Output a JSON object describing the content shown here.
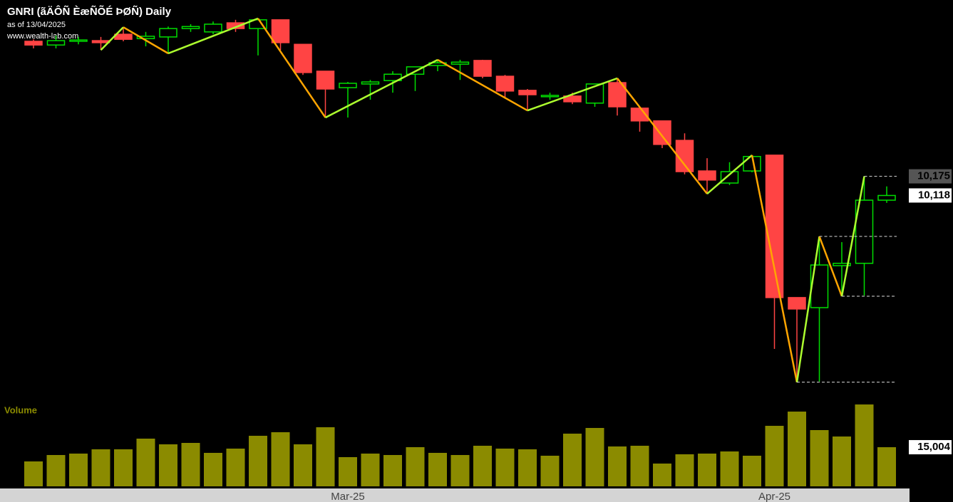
{
  "title": "GNRI (ãÄÔÑ ÈæÑÕÉ ÞØÑ) Daily",
  "subtitle": "as of 13/04/2025",
  "source": "www.wealth-lab.com",
  "chart_data": [
    {
      "type": "candlestick",
      "up_color": "#00dd00",
      "down_color": "#ff4444",
      "ylim": [
        9500,
        10700
      ],
      "yticks": [
        {
          "value": 10175,
          "label": "10,175"
        },
        {
          "value": 10118,
          "label": "10,118"
        }
      ],
      "open": [
        10577,
        10566,
        10577,
        10579,
        10598,
        10585,
        10590,
        10615,
        10605,
        10632,
        10615,
        10641,
        10568,
        10488,
        10439,
        10450,
        10460,
        10479,
        10505,
        10509,
        10520,
        10473,
        10431,
        10412,
        10414,
        10393,
        10454,
        10378,
        10340,
        10282,
        10191,
        10155,
        10191,
        10238,
        9814,
        9784,
        9909,
        9916,
        10104
      ],
      "high": [
        10583,
        10594,
        10590,
        10590,
        10619,
        10605,
        10621,
        10628,
        10636,
        10641,
        10645,
        10641,
        10568,
        10488,
        10456,
        10462,
        10488,
        10501,
        10522,
        10522,
        10522,
        10477,
        10435,
        10424,
        10424,
        10450,
        10467,
        10378,
        10340,
        10303,
        10229,
        10217,
        10238,
        10238,
        9814,
        9996,
        9979,
        10175,
        10145
      ],
      "low": [
        10556,
        10556,
        10568,
        10551,
        10577,
        10562,
        10541,
        10605,
        10598,
        10605,
        10535,
        10551,
        10477,
        10350,
        10350,
        10403,
        10424,
        10429,
        10488,
        10462,
        10467,
        10407,
        10371,
        10403,
        10390,
        10382,
        10356,
        10308,
        10259,
        10181,
        10123,
        10149,
        10187,
        9661,
        9562,
        9564,
        9818,
        9820,
        10096
      ],
      "close": [
        10566,
        10579,
        10581,
        10573,
        10583,
        10592,
        10615,
        10621,
        10628,
        10615,
        10641,
        10573,
        10484,
        10435,
        10452,
        10456,
        10479,
        10501,
        10513,
        10515,
        10473,
        10429,
        10418,
        10416,
        10397,
        10450,
        10382,
        10340,
        10270,
        10189,
        10164,
        10189,
        10234,
        9814,
        9780,
        9911,
        9916,
        10104,
        10118
      ]
    },
    {
      "type": "bar",
      "title": "Volume",
      "color": "#8b8b00",
      "ylim": [
        0,
        31400
      ],
      "yticks": [
        {
          "value": 15004,
          "label": "15,004"
        }
      ],
      "categories": [
        null,
        null,
        null,
        null,
        null,
        null,
        null,
        null,
        null,
        null,
        null,
        null,
        null,
        null,
        "Mar-25",
        null,
        null,
        null,
        null,
        null,
        null,
        null,
        null,
        null,
        null,
        null,
        null,
        null,
        null,
        null,
        null,
        null,
        null,
        "Apr-25",
        null,
        null,
        null,
        null,
        null
      ],
      "values": [
        9555,
        12012,
        12558,
        14196,
        14196,
        18291,
        16107,
        16653,
        12831,
        14469,
        19383,
        20748,
        16107,
        22659,
        11193,
        12558,
        12012,
        15015,
        12831,
        12012,
        15561,
        14469,
        14196,
        11739,
        20202,
        22386,
        15288,
        15561,
        8736,
        12285,
        12558,
        13377,
        11739,
        23205,
        28665,
        21567,
        19110,
        31395,
        15004
      ]
    }
  ]
}
